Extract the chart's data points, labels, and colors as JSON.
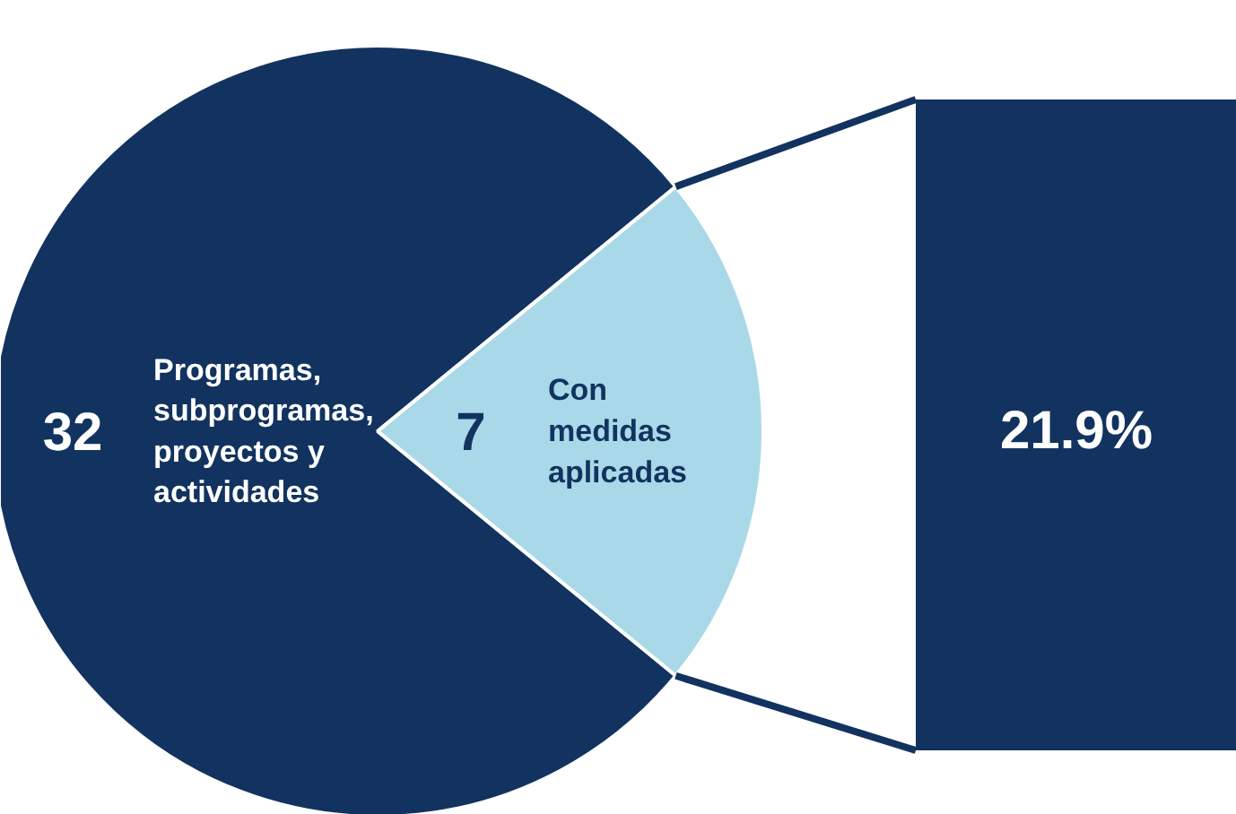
{
  "chart_data": {
    "type": "pie",
    "categories": [
      "Programas,\nsubprogramas,\nproyectos y\nactividades",
      "Con\nmedidas\naplicadas"
    ],
    "values": [
      25,
      7
    ],
    "colors": [
      "#12335f",
      "#a9d9e8"
    ],
    "value_labels": [
      null,
      "7"
    ],
    "annotations": [
      "32",
      "21.9%"
    ]
  }
}
